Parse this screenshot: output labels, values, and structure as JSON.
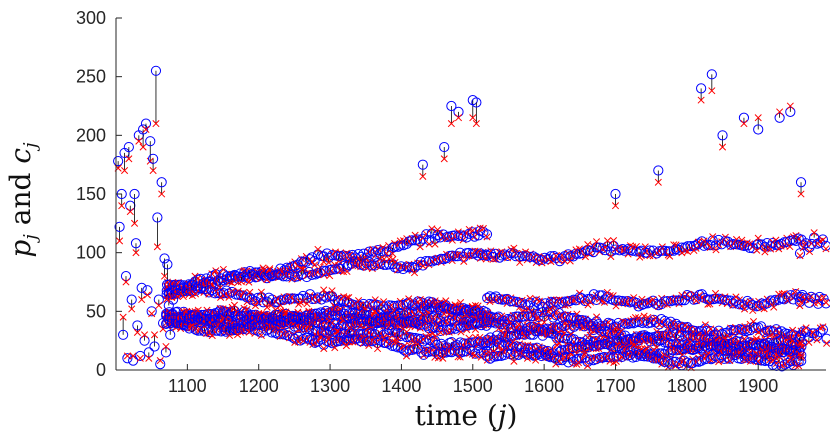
{
  "chart_data": {
    "type": "scatter",
    "xlabel": "time (j)",
    "ylabel": "p_j and c_j",
    "xlim": [
      1000,
      1995
    ],
    "ylim": [
      0,
      300
    ],
    "x_ticks": [
      1100,
      1200,
      1300,
      1400,
      1500,
      1600,
      1700,
      1800,
      1900
    ],
    "y_ticks": [
      0,
      50,
      100,
      150,
      200,
      250,
      300
    ],
    "grid": false,
    "legend": "none",
    "series": [
      {
        "marker": "circle",
        "color": "#0000ff",
        "role": "p_j"
      },
      {
        "marker": "x",
        "color": "#ff0000",
        "role": "c_j"
      }
    ],
    "connectors": {
      "color": "#000000",
      "description": "vertical line joining p_j and c_j at each j"
    },
    "points": [
      [
        1003,
        178,
        172
      ],
      [
        1005,
        122,
        110
      ],
      [
        1008,
        150,
        140
      ],
      [
        1010,
        30,
        45
      ],
      [
        1012,
        185,
        170
      ],
      [
        1014,
        80,
        75
      ],
      [
        1016,
        10,
        12
      ],
      [
        1018,
        190,
        180
      ],
      [
        1020,
        140,
        135
      ],
      [
        1022,
        60,
        52
      ],
      [
        1024,
        8,
        12
      ],
      [
        1026,
        150,
        125
      ],
      [
        1028,
        108,
        100
      ],
      [
        1030,
        38,
        32
      ],
      [
        1032,
        200,
        195
      ],
      [
        1034,
        12,
        10
      ],
      [
        1036,
        70,
        60
      ],
      [
        1038,
        205,
        190
      ],
      [
        1040,
        25,
        30
      ],
      [
        1042,
        210,
        205
      ],
      [
        1044,
        68,
        64
      ],
      [
        1046,
        15,
        10
      ],
      [
        1048,
        195,
        178
      ],
      [
        1050,
        50,
        48
      ],
      [
        1052,
        180,
        170
      ],
      [
        1054,
        20,
        30
      ],
      [
        1056,
        255,
        210
      ],
      [
        1058,
        130,
        105
      ],
      [
        1060,
        60,
        55
      ],
      [
        1062,
        5,
        8
      ],
      [
        1064,
        160,
        150
      ],
      [
        1066,
        40,
        35
      ],
      [
        1068,
        95,
        80
      ],
      [
        1070,
        15,
        20
      ],
      [
        1072,
        90,
        75
      ],
      [
        1074,
        55,
        65
      ],
      [
        1076,
        30,
        40
      ],
      [
        1078,
        68,
        62
      ],
      [
        1080,
        60,
        72
      ]
    ],
    "bands": [
      {
        "from": 1070,
        "to": 1520,
        "values": [
          [
            42,
            52
          ],
          [
            48,
            40
          ],
          [
            68,
            50
          ],
          [
            72,
            98
          ],
          [
            68,
            120
          ],
          [
            45,
            38
          ],
          [
            45,
            22
          ],
          [
            40,
            12
          ]
        ]
      },
      {
        "from": 1520,
        "to": 1960,
        "values": [
          [
            95,
            110
          ],
          [
            58,
            60
          ],
          [
            48,
            30
          ],
          [
            40,
            20
          ],
          [
            30,
            18
          ],
          [
            20,
            15
          ],
          [
            12,
            8
          ]
        ]
      },
      {
        "from": 1958,
        "to": 1995,
        "values": [
          [
            105,
            110
          ],
          [
            62,
            60
          ],
          [
            30,
            32
          ]
        ]
      }
    ],
    "outliers": [
      [
        1470,
        225,
        210
      ],
      [
        1480,
        220,
        215
      ],
      [
        1500,
        230,
        215
      ],
      [
        1505,
        228,
        210
      ],
      [
        1430,
        175,
        165
      ],
      [
        1460,
        190,
        180
      ],
      [
        1820,
        240,
        230
      ],
      [
        1835,
        252,
        238
      ],
      [
        1850,
        200,
        190
      ],
      [
        1880,
        215,
        210
      ],
      [
        1900,
        205,
        215
      ],
      [
        1930,
        215,
        220
      ],
      [
        1945,
        220,
        225
      ],
      [
        1960,
        160,
        150
      ],
      [
        1700,
        150,
        140
      ],
      [
        1760,
        170,
        160
      ]
    ]
  }
}
